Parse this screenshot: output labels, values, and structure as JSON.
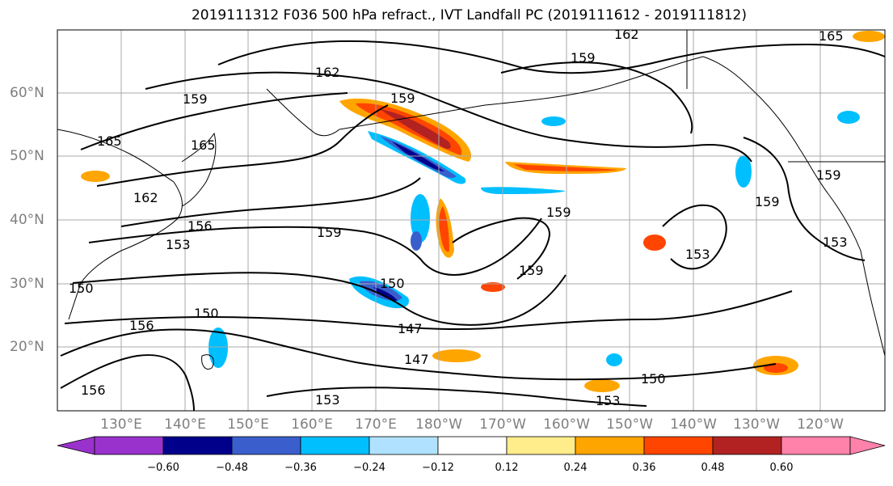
{
  "title": "2019111312 F036 500 hPa refract., IVT Landfall PC (2019111612 - 2019111812)",
  "lat_labels": [
    "60°N",
    "50°N",
    "40°N",
    "30°N",
    "20°N"
  ],
  "lon_labels": [
    "130°E",
    "140°E",
    "150°E",
    "160°E",
    "170°E",
    "180°W",
    "170°W",
    "160°W",
    "150°W",
    "140°W",
    "130°W",
    "120°W"
  ],
  "colorbar": {
    "tick_labels": [
      "−0.60",
      "−0.48",
      "−0.36",
      "−0.24",
      "−0.12",
      "0.12",
      "0.24",
      "0.36",
      "0.48",
      "0.60"
    ],
    "colors": [
      "#9932cc",
      "#00008b",
      "#3a5fcd",
      "#00bfff",
      "#b0e2ff",
      "#ffffff",
      "#ffec8b",
      "#ffa500",
      "#ff4500",
      "#b22222",
      "#ff82ab"
    ]
  },
  "contour_labels": [
    "162",
    "165",
    "159",
    "162",
    "159",
    "165",
    "165",
    "162",
    "156",
    "153",
    "159",
    "159",
    "150",
    "159",
    "150",
    "153",
    "147",
    "147",
    "150",
    "153",
    "156",
    "159",
    "159",
    "153",
    "159",
    "153",
    "150",
    "156"
  ],
  "colors": {
    "contour": "#000000",
    "grid": "#a9a9a9",
    "coast": "#000000"
  }
}
